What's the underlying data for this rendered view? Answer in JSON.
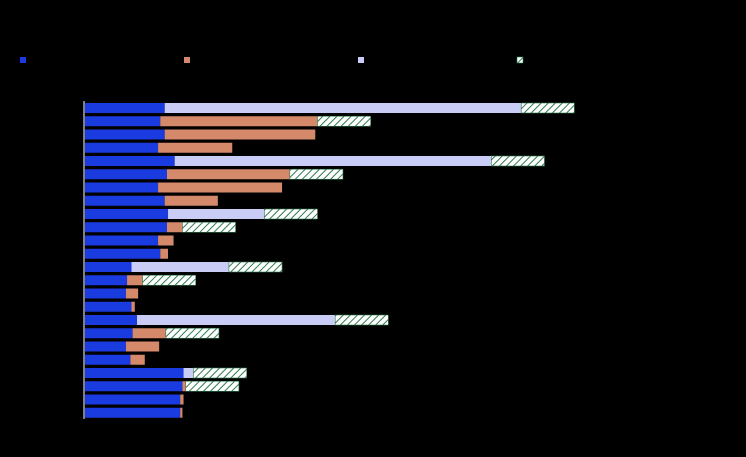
{
  "chart_data": {
    "type": "bar",
    "orientation": "horizontal",
    "stacked": true,
    "background": "#000000",
    "grid": false,
    "legend_position": "top",
    "series": [
      {
        "key": "s1",
        "name": "",
        "color": "#1a3be0",
        "pattern": "solid",
        "values": [
          72,
          68,
          72,
          66,
          81,
          74,
          66,
          72,
          75,
          74,
          66,
          68,
          42,
          38,
          37,
          42,
          47,
          43,
          37,
          41,
          89,
          88,
          86,
          86
        ]
      },
      {
        "key": "s2",
        "name": "",
        "color": "#d4896b",
        "pattern": "solid",
        "values": [
          0,
          142,
          136,
          67,
          0,
          111,
          112,
          48,
          0,
          14,
          14,
          7,
          0,
          14,
          11,
          3,
          0,
          30,
          30,
          13,
          0,
          3,
          3,
          2
        ]
      },
      {
        "key": "s3",
        "name": "",
        "color": "#c9ccf4",
        "pattern": "solid",
        "values": [
          322,
          0,
          0,
          0,
          286,
          0,
          0,
          0,
          87,
          0,
          0,
          0,
          88,
          0,
          0,
          0,
          179,
          0,
          0,
          0,
          9,
          0,
          0,
          0
        ]
      },
      {
        "key": "s4",
        "name": "",
        "color": "#ffffff",
        "pattern": "hatched",
        "values": [
          48,
          48,
          0,
          0,
          48,
          48,
          0,
          0,
          48,
          48,
          0,
          0,
          48,
          48,
          0,
          0,
          48,
          48,
          0,
          0,
          48,
          48,
          0,
          0
        ]
      }
    ],
    "categories": [
      "",
      "",
      "",
      "",
      "",
      "",
      "",
      "",
      "",
      "",
      "",
      "",
      "",
      "",
      "",
      "",
      "",
      "",
      "",
      "",
      "",
      "",
      "",
      ""
    ],
    "xlim": [
      0,
      560
    ],
    "title": "",
    "xlabel": "",
    "ylabel": ""
  }
}
